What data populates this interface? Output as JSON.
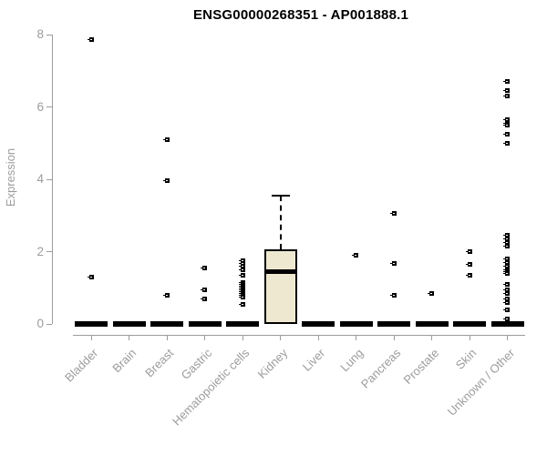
{
  "chart_data": {
    "type": "boxplot",
    "title": "ENSG00000268351 - AP001888.1",
    "ylabel": "Expression",
    "xlabel": "",
    "ylim": [
      0,
      8
    ],
    "yticks": [
      0,
      2,
      4,
      6,
      8
    ],
    "grid": false,
    "legend": "none",
    "categories": [
      "Bladder",
      "Brain",
      "Breast",
      "Gastric",
      "Hematopoietic cells",
      "Kidney",
      "Liver",
      "Lung",
      "Pancreas",
      "Prostate",
      "Skin",
      "Unknown / Other"
    ],
    "boxes": [
      {
        "category": "Bladder",
        "q1": 0,
        "median": 0,
        "q3": 0,
        "whisker_low": 0,
        "whisker_high": 0,
        "outliers": [
          7.85,
          1.3
        ]
      },
      {
        "category": "Brain",
        "q1": 0,
        "median": 0,
        "q3": 0,
        "whisker_low": 0,
        "whisker_high": 0,
        "outliers": []
      },
      {
        "category": "Breast",
        "q1": 0,
        "median": 0,
        "q3": 0,
        "whisker_low": 0,
        "whisker_high": 0,
        "outliers": [
          5.1,
          3.95,
          0.8
        ]
      },
      {
        "category": "Gastric",
        "q1": 0,
        "median": 0,
        "q3": 0,
        "whisker_low": 0,
        "whisker_high": 0,
        "outliers": [
          1.55,
          0.95,
          0.68
        ]
      },
      {
        "category": "Hematopoietic cells",
        "q1": 0,
        "median": 0,
        "q3": 0,
        "whisker_low": 0,
        "whisker_high": 0,
        "outliers": [
          1.75,
          1.68,
          1.6,
          1.5,
          1.35,
          1.15,
          1.1,
          1.05,
          1.0,
          0.95,
          0.9,
          0.85,
          0.8,
          0.75,
          0.55
        ]
      },
      {
        "category": "Kidney",
        "q1": 0,
        "median": 1.45,
        "q3": 2.07,
        "whisker_low": 0,
        "whisker_high": 3.55,
        "outliers": []
      },
      {
        "category": "Liver",
        "q1": 0,
        "median": 0,
        "q3": 0,
        "whisker_low": 0,
        "whisker_high": 0,
        "outliers": []
      },
      {
        "category": "Lung",
        "q1": 0,
        "median": 0,
        "q3": 0,
        "whisker_low": 0,
        "whisker_high": 0,
        "outliers": [
          1.9
        ]
      },
      {
        "category": "Pancreas",
        "q1": 0,
        "median": 0,
        "q3": 0,
        "whisker_low": 0,
        "whisker_high": 0,
        "outliers": [
          3.05,
          1.68,
          0.78
        ]
      },
      {
        "category": "Prostate",
        "q1": 0,
        "median": 0,
        "q3": 0,
        "whisker_low": 0,
        "whisker_high": 0,
        "outliers": [
          0.85
        ]
      },
      {
        "category": "Skin",
        "q1": 0,
        "median": 0,
        "q3": 0,
        "whisker_low": 0,
        "whisker_high": 0,
        "outliers": [
          2.0,
          1.65,
          1.35
        ]
      },
      {
        "category": "Unknown / Other",
        "q1": 0,
        "median": 0,
        "q3": 0,
        "whisker_low": 0,
        "whisker_high": 0,
        "outliers": [
          6.7,
          6.45,
          6.3,
          5.65,
          5.55,
          5.5,
          5.25,
          5.0,
          2.45,
          2.35,
          2.25,
          2.15,
          1.8,
          1.7,
          1.6,
          1.5,
          1.45,
          1.4,
          1.1,
          0.95,
          0.85,
          0.7,
          0.6,
          0.4,
          0.15
        ]
      }
    ],
    "colors": {
      "box_fill": "#EEE8D0",
      "box_border": "#000000",
      "outlier_point": "#000000",
      "axis": "#9c9c9c",
      "tick_label": "#9c9c9c",
      "title": "#000000"
    }
  }
}
